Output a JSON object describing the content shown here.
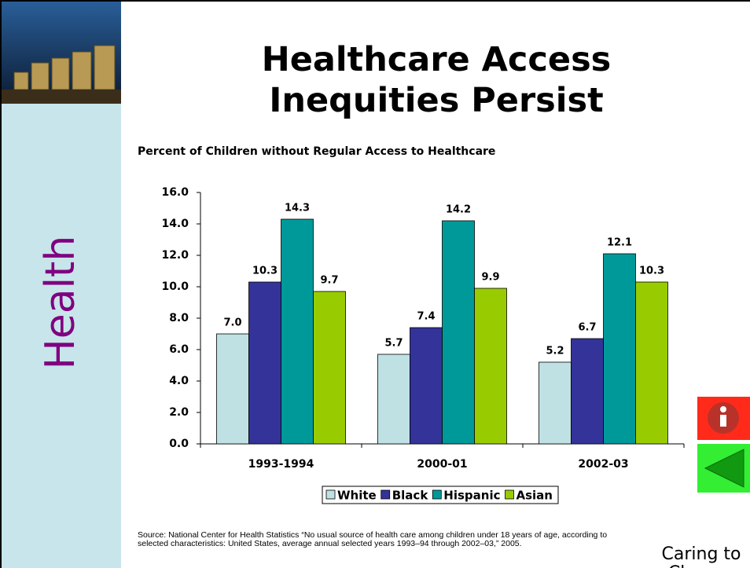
{
  "sidebar_label": "Health",
  "title": "Healthcare Access Inequities Persist",
  "source": "Source: National Center for Health Statistics “No usual source of health care among children under 18 years of age, according to selected characteristics: United States, average annual selected years 1993–94 through 2002–03,” 2005.",
  "footer": "Caring to Change",
  "chart_data": {
    "type": "bar",
    "title": "Percent of Children without Regular Access to Healthcare",
    "categories": [
      "1993-1994",
      "2000-01",
      "2002-03"
    ],
    "series": [
      {
        "name": "White",
        "color": "#bfe1e4",
        "values": [
          7.0,
          5.7,
          5.2
        ],
        "value_labels": [
          "7.0",
          "5.7",
          "5.2"
        ]
      },
      {
        "name": "Black",
        "color": "#333399",
        "values": [
          10.3,
          7.4,
          6.7
        ],
        "value_labels": [
          "10.3",
          "7.4",
          "6.7"
        ]
      },
      {
        "name": "Hispanic",
        "color": "#009999",
        "values": [
          14.3,
          14.2,
          12.1
        ],
        "value_labels": [
          "14.3",
          "14.2",
          "12.1"
        ]
      },
      {
        "name": "Asian",
        "color": "#99cc00",
        "values": [
          9.7,
          9.9,
          10.3
        ],
        "value_labels": [
          "9.7",
          "9.9",
          "10.3"
        ]
      }
    ],
    "ylim": [
      0,
      16
    ],
    "yticks": [
      {
        "value": 0,
        "label": "0.0"
      },
      {
        "value": 2,
        "label": "2.0"
      },
      {
        "value": 4,
        "label": "4.0"
      },
      {
        "value": 6,
        "label": "6.0"
      },
      {
        "value": 8,
        "label": "8.0"
      },
      {
        "value": 10,
        "label": "10.0"
      },
      {
        "value": 12,
        "label": "12.0"
      },
      {
        "value": 14,
        "label": "14.0"
      },
      {
        "value": 16,
        "label": "16.0"
      }
    ],
    "legend": "bottom"
  }
}
